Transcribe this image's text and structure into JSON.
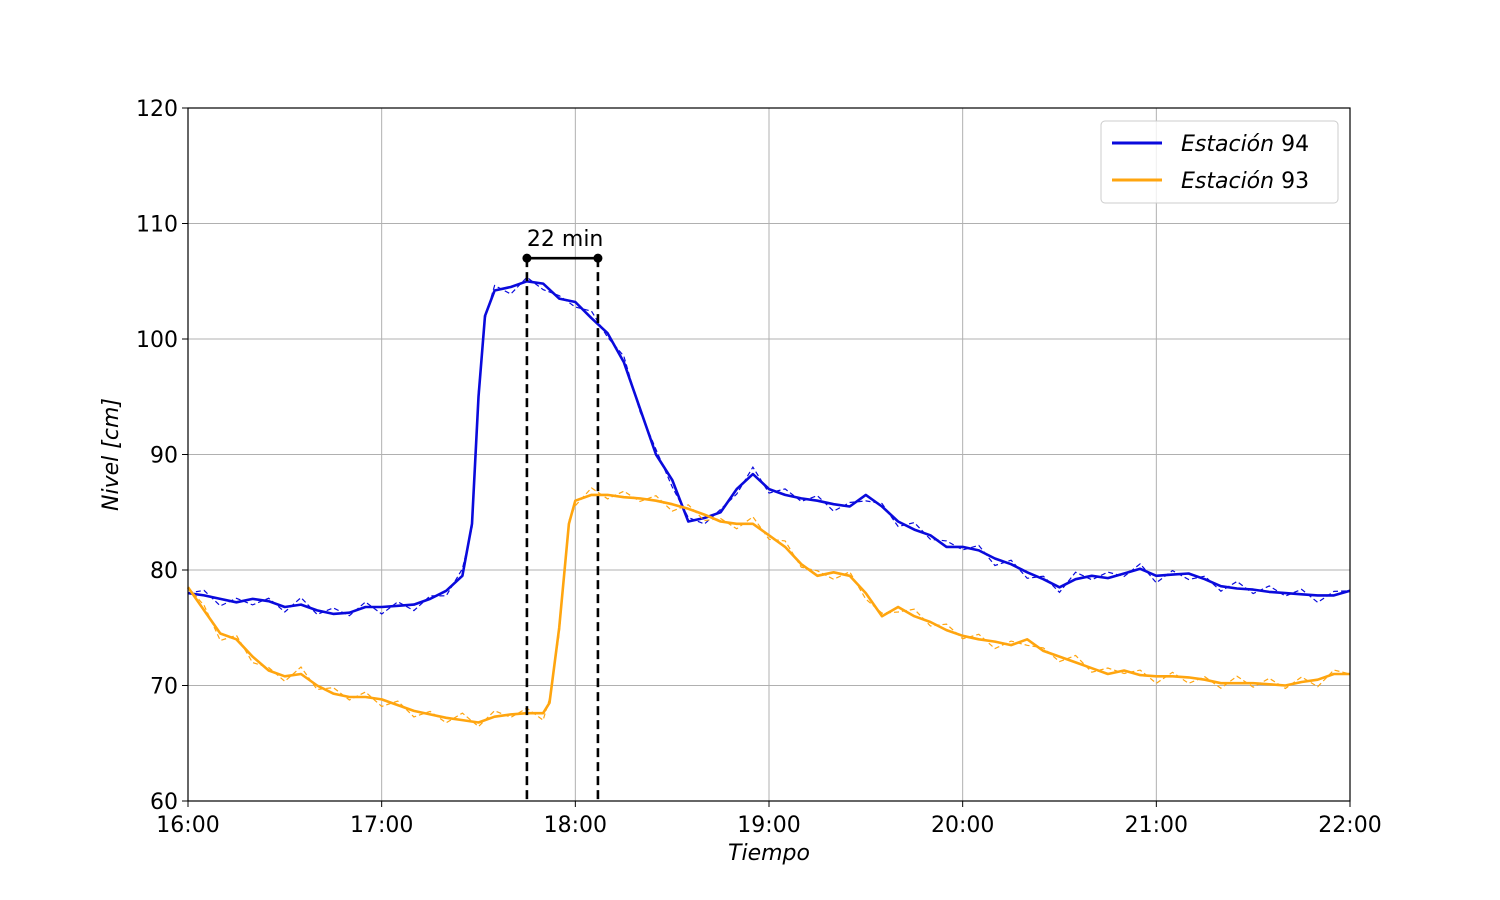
{
  "chart_data": {
    "type": "line",
    "title": "",
    "xlabel": "Tiempo",
    "ylabel": "Nivel [cm]",
    "ylabel_italic_part": "Nivel",
    "ylabel_unit_part": "[cm]",
    "xlim_minutes": [
      0,
      360
    ],
    "ylim": [
      60,
      120
    ],
    "x_ticks": [
      "16:00",
      "17:00",
      "18:00",
      "19:00",
      "20:00",
      "21:00",
      "22:00"
    ],
    "y_ticks": [
      "60",
      "70",
      "80",
      "90",
      "100",
      "110",
      "120"
    ],
    "grid": true,
    "legend_position": "top-right",
    "series": [
      {
        "name": "Estación 94",
        "legend_italic": "Estación",
        "legend_num": "94",
        "color": "#0a0adc",
        "x_minutes": [
          0,
          5,
          10,
          15,
          20,
          25,
          30,
          35,
          40,
          45,
          50,
          55,
          60,
          65,
          70,
          75,
          80,
          85,
          88,
          90,
          92,
          95,
          100,
          105,
          110,
          115,
          120,
          125,
          130,
          135,
          140,
          145,
          150,
          155,
          160,
          165,
          170,
          175,
          180,
          185,
          190,
          195,
          200,
          205,
          210,
          215,
          220,
          225,
          230,
          235,
          240,
          245,
          250,
          255,
          260,
          265,
          270,
          275,
          280,
          285,
          290,
          295,
          300,
          305,
          310,
          315,
          320,
          325,
          330,
          335,
          340,
          345,
          350,
          355,
          360
        ],
        "values": [
          78,
          77.8,
          77.5,
          77.2,
          77.5,
          77.3,
          76.8,
          77.0,
          76.5,
          76.2,
          76.3,
          76.8,
          76.8,
          76.9,
          77.0,
          77.5,
          78.2,
          79.5,
          84,
          95,
          102,
          104.2,
          104.5,
          105.0,
          104.8,
          103.5,
          103.2,
          101.8,
          100.5,
          98.0,
          94.0,
          90.0,
          87.8,
          84.2,
          84.5,
          85.0,
          87.0,
          88.3,
          87.0,
          86.5,
          86.2,
          86.0,
          85.7,
          85.5,
          86.5,
          85.5,
          84.2,
          83.5,
          83.0,
          82.0,
          82.0,
          81.7,
          81.0,
          80.5,
          79.8,
          79.2,
          78.5,
          79.2,
          79.5,
          79.3,
          79.7,
          80.1,
          79.5,
          79.6,
          79.7,
          79.2,
          78.6,
          78.4,
          78.3,
          78.1,
          78.0,
          77.9,
          77.8,
          77.8,
          78.2
        ]
      },
      {
        "name": "Estación 93",
        "legend_italic": "Estación",
        "legend_num": "93",
        "color": "#ffa50f",
        "x_minutes": [
          0,
          5,
          10,
          15,
          20,
          25,
          30,
          35,
          40,
          45,
          50,
          55,
          60,
          65,
          70,
          75,
          80,
          85,
          90,
          95,
          100,
          105,
          110,
          112,
          115,
          118,
          120,
          125,
          130,
          135,
          140,
          145,
          150,
          155,
          160,
          165,
          170,
          175,
          180,
          185,
          190,
          195,
          200,
          205,
          210,
          215,
          220,
          225,
          230,
          235,
          240,
          245,
          250,
          255,
          260,
          265,
          270,
          275,
          280,
          285,
          290,
          295,
          300,
          305,
          310,
          315,
          320,
          325,
          330,
          335,
          340,
          345,
          350,
          355,
          360
        ],
        "values": [
          78.5,
          76.5,
          74.5,
          74.0,
          72.5,
          71.3,
          70.8,
          71.0,
          70.0,
          69.3,
          69.0,
          69.0,
          68.8,
          68.3,
          67.8,
          67.5,
          67.2,
          67.0,
          66.8,
          67.3,
          67.5,
          67.6,
          67.6,
          68.5,
          75,
          84,
          86.0,
          86.5,
          86.5,
          86.3,
          86.2,
          86.0,
          85.7,
          85.3,
          84.8,
          84.2,
          84.0,
          84.0,
          83.0,
          82.0,
          80.5,
          79.5,
          79.8,
          79.5,
          78.0,
          76.0,
          76.8,
          76.0,
          75.5,
          74.8,
          74.3,
          74.0,
          73.8,
          73.5,
          74.0,
          73.0,
          72.5,
          72.0,
          71.5,
          71.0,
          71.3,
          70.9,
          70.8,
          70.8,
          70.7,
          70.5,
          70.2,
          70.2,
          70.2,
          70.1,
          70.0,
          70.3,
          70.5,
          71.0,
          71.0
        ]
      }
    ],
    "annotations": {
      "delay_label": "22 min",
      "start_minute": 105,
      "end_minute": 127,
      "bar_level": 107,
      "line_color": "#000000"
    }
  }
}
